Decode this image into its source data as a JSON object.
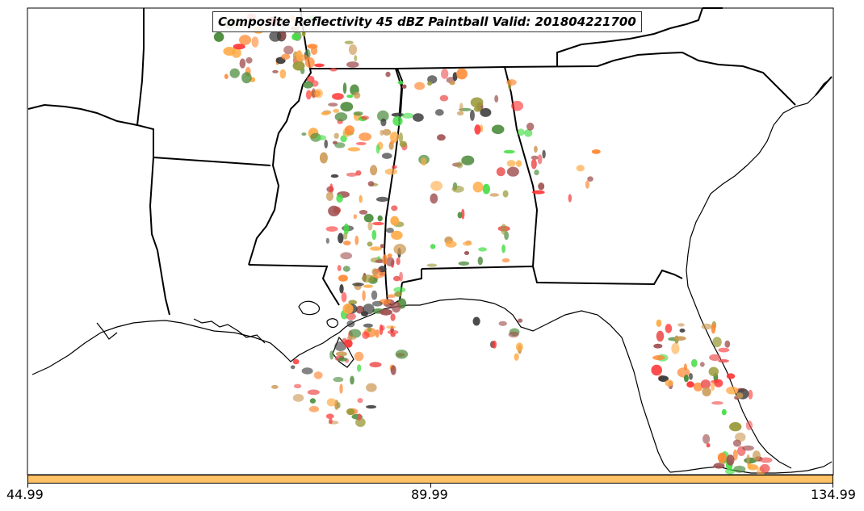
{
  "title": "Composite Reflectivity 45 dBZ Paintball Valid: 201804221700",
  "colorbar": {
    "color": "#ffc266",
    "ticks": [
      "44.99",
      "89.99",
      "134.99"
    ]
  },
  "colors": {
    "member_palette": [
      "#ff3333",
      "#44dd44",
      "#a05050",
      "#9a9a3a",
      "#ff8833",
      "#ffaa44",
      "#3a3a3a",
      "#4a8a3a",
      "#cc9955",
      "#ee5555"
    ]
  }
}
